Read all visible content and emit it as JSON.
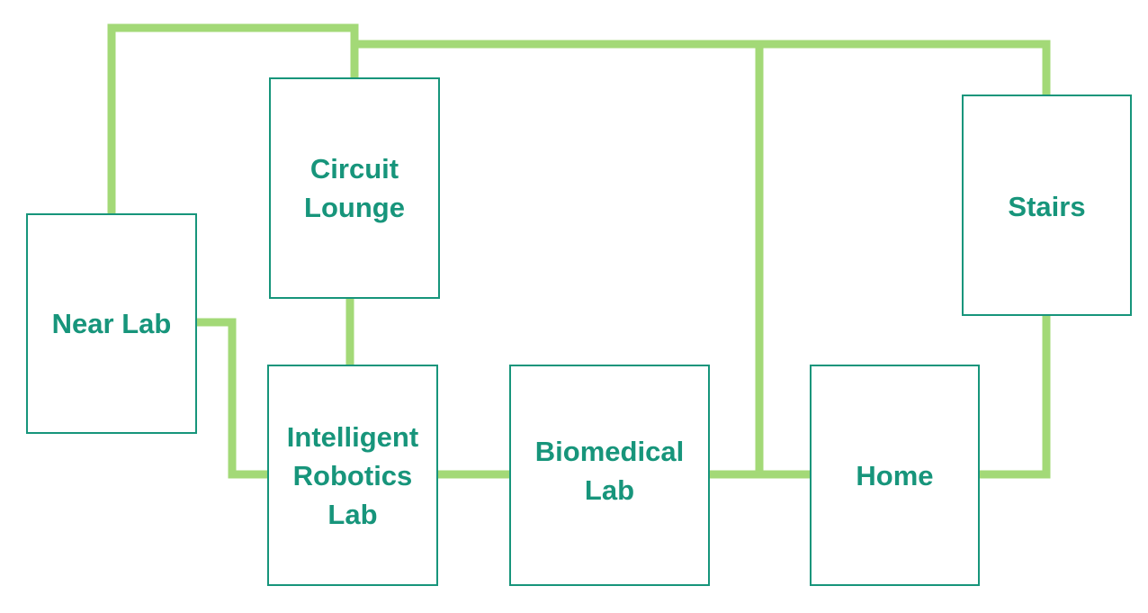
{
  "diagram": {
    "colors": {
      "connector": "#a3d977",
      "room_border": "#17957b",
      "room_text": "#17957b",
      "background": "#ffffff"
    },
    "rooms": {
      "near_lab": "Near Lab",
      "circuit_lounge": "Circuit\nLounge",
      "stairs": "Stairs",
      "intelligent_robotics_lab": "Intelligent\nRobotics\nLab",
      "biomedical_lab": "Biomedical\nLab",
      "home": "Home"
    }
  }
}
